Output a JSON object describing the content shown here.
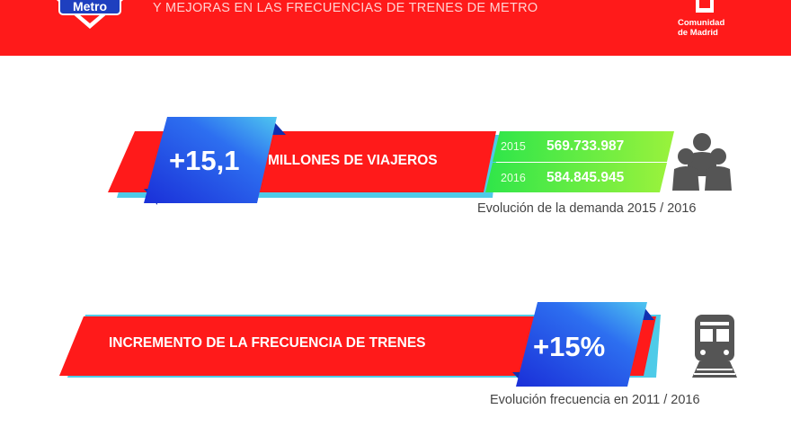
{
  "header": {
    "logo_text": "Metro",
    "subtitle": "Y MEJORAS EN LAS FRECUENCIAS DE TRENES DE METRO",
    "org_line1": "Comunidad",
    "org_line2": "de Madrid"
  },
  "demand": {
    "increase": "+15,1",
    "label": "MILLONES DE VIAJEROS",
    "rows": [
      {
        "year": "2015",
        "value": "569.733.987"
      },
      {
        "year": "2016",
        "value": "584.845.945"
      }
    ],
    "caption": "Evolución de la demanda 2015 / 2016",
    "icon": "people-group-icon"
  },
  "frequency": {
    "label": "INCREMENTO DE LA FRECUENCIA DE TRENES",
    "increase": "+15%",
    "caption": "Evolución frecuencia en 2011 / 2016",
    "icon": "train-icon"
  },
  "colors": {
    "red": "#ff1a1a",
    "blue": "#1e4be6",
    "cyan": "#3ac8e8",
    "green": "#33ee33",
    "icon_gray": "#555555"
  }
}
